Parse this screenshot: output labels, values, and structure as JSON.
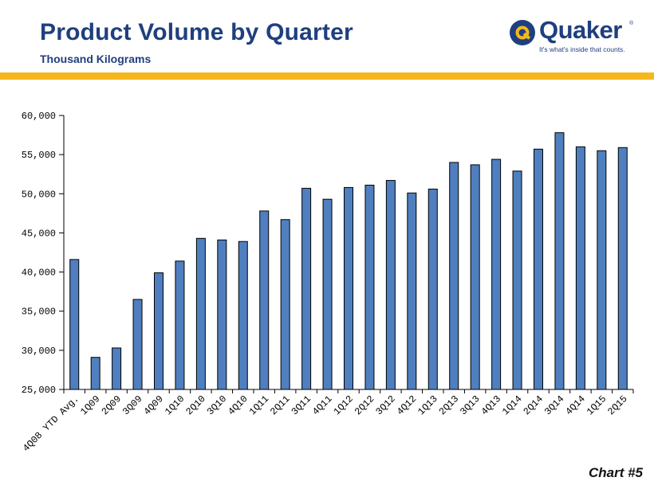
{
  "header": {
    "title": "Product Volume by Quarter",
    "subtitle": "Thousand Kilograms"
  },
  "logo": {
    "word": "Quaker",
    "tagline": "It's what's inside that counts.",
    "registered_mark": "®"
  },
  "footer": {
    "chart_label": "Chart #5"
  },
  "colors": {
    "title": "#1f3f7f",
    "band": "#f5b71d",
    "bar_fill": "#4f7fbf",
    "bar_stroke": "#000000",
    "logo_circle": "#1f3f7f",
    "logo_accent": "#f5b71d"
  },
  "chart_data": {
    "type": "bar",
    "title": "",
    "xlabel": "",
    "ylabel": "",
    "ylim": [
      25000,
      60000
    ],
    "yticks": [
      25000,
      30000,
      35000,
      40000,
      45000,
      50000,
      55000,
      60000
    ],
    "ytick_labels": [
      "25,000",
      "30,000",
      "35,000",
      "40,000",
      "45,000",
      "50,000",
      "55,000",
      "60,000"
    ],
    "grid": false,
    "categories": [
      "4Q08 YTD Avg.",
      "1Q09",
      "2Q09",
      "3Q09",
      "4Q09",
      "1Q10",
      "2Q10",
      "3Q10",
      "4Q10",
      "1Q11",
      "2Q11",
      "3Q11",
      "4Q11",
      "1Q12",
      "2Q12",
      "3Q12",
      "4Q12",
      "1Q13",
      "2Q13",
      "3Q13",
      "4Q13",
      "1Q14",
      "2Q14",
      "3Q14",
      "4Q14",
      "1Q15",
      "2Q15"
    ],
    "values": [
      41600,
      29100,
      30300,
      36500,
      39900,
      41400,
      44300,
      44100,
      43900,
      47800,
      46700,
      50700,
      49300,
      50800,
      51100,
      51700,
      50100,
      50600,
      54000,
      53700,
      54400,
      52900,
      55700,
      57800,
      56000,
      55500,
      55900
    ]
  }
}
